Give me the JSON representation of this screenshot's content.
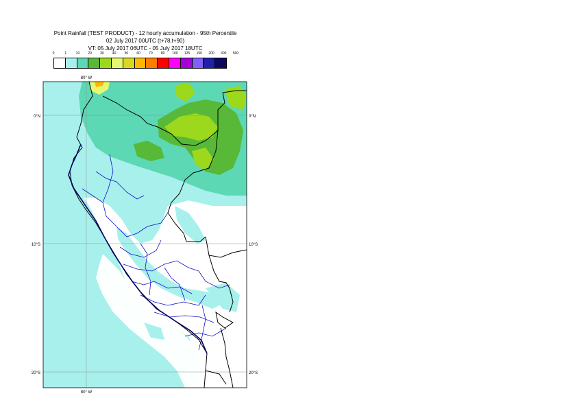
{
  "header": {
    "title_line1": "Point Rainfall (TEST PRODUCT) - 12 hourly accumulation - 95th Percentile",
    "title_line2": "02 July 2017 00UTC (t+78,t+90)",
    "title_line3": "VT: 05 July 2017 06UTC - 05 July 2017 18UTC"
  },
  "legend": {
    "levels": [
      "0",
      "1",
      "10",
      "20",
      "30",
      "40",
      "50",
      "60",
      "70",
      "80",
      "100",
      "125",
      "150",
      "200",
      "300",
      "500"
    ],
    "colors": [
      "#ffffff",
      "#a8f0ec",
      "#5cd8b4",
      "#58b838",
      "#9cd81c",
      "#e4f870",
      "#d8d820",
      "#ffb800",
      "#ff7c00",
      "#ff0000",
      "#ff00ff",
      "#a400d8",
      "#8060f8",
      "#2020a8",
      "#0c0860"
    ]
  },
  "map": {
    "lon_labels": {
      "top": "80° W",
      "bottom": "80° W"
    },
    "lat_labels": [
      {
        "lat": 0,
        "left": "0°N",
        "right": "0°N"
      },
      {
        "lat": -10,
        "left": "10°S",
        "right": "10°S"
      },
      {
        "lat": -20,
        "left": "20°S",
        "right": "20°S"
      }
    ],
    "ocean_color": "#a8f0ec",
    "land_color": "#ffffff"
  }
}
